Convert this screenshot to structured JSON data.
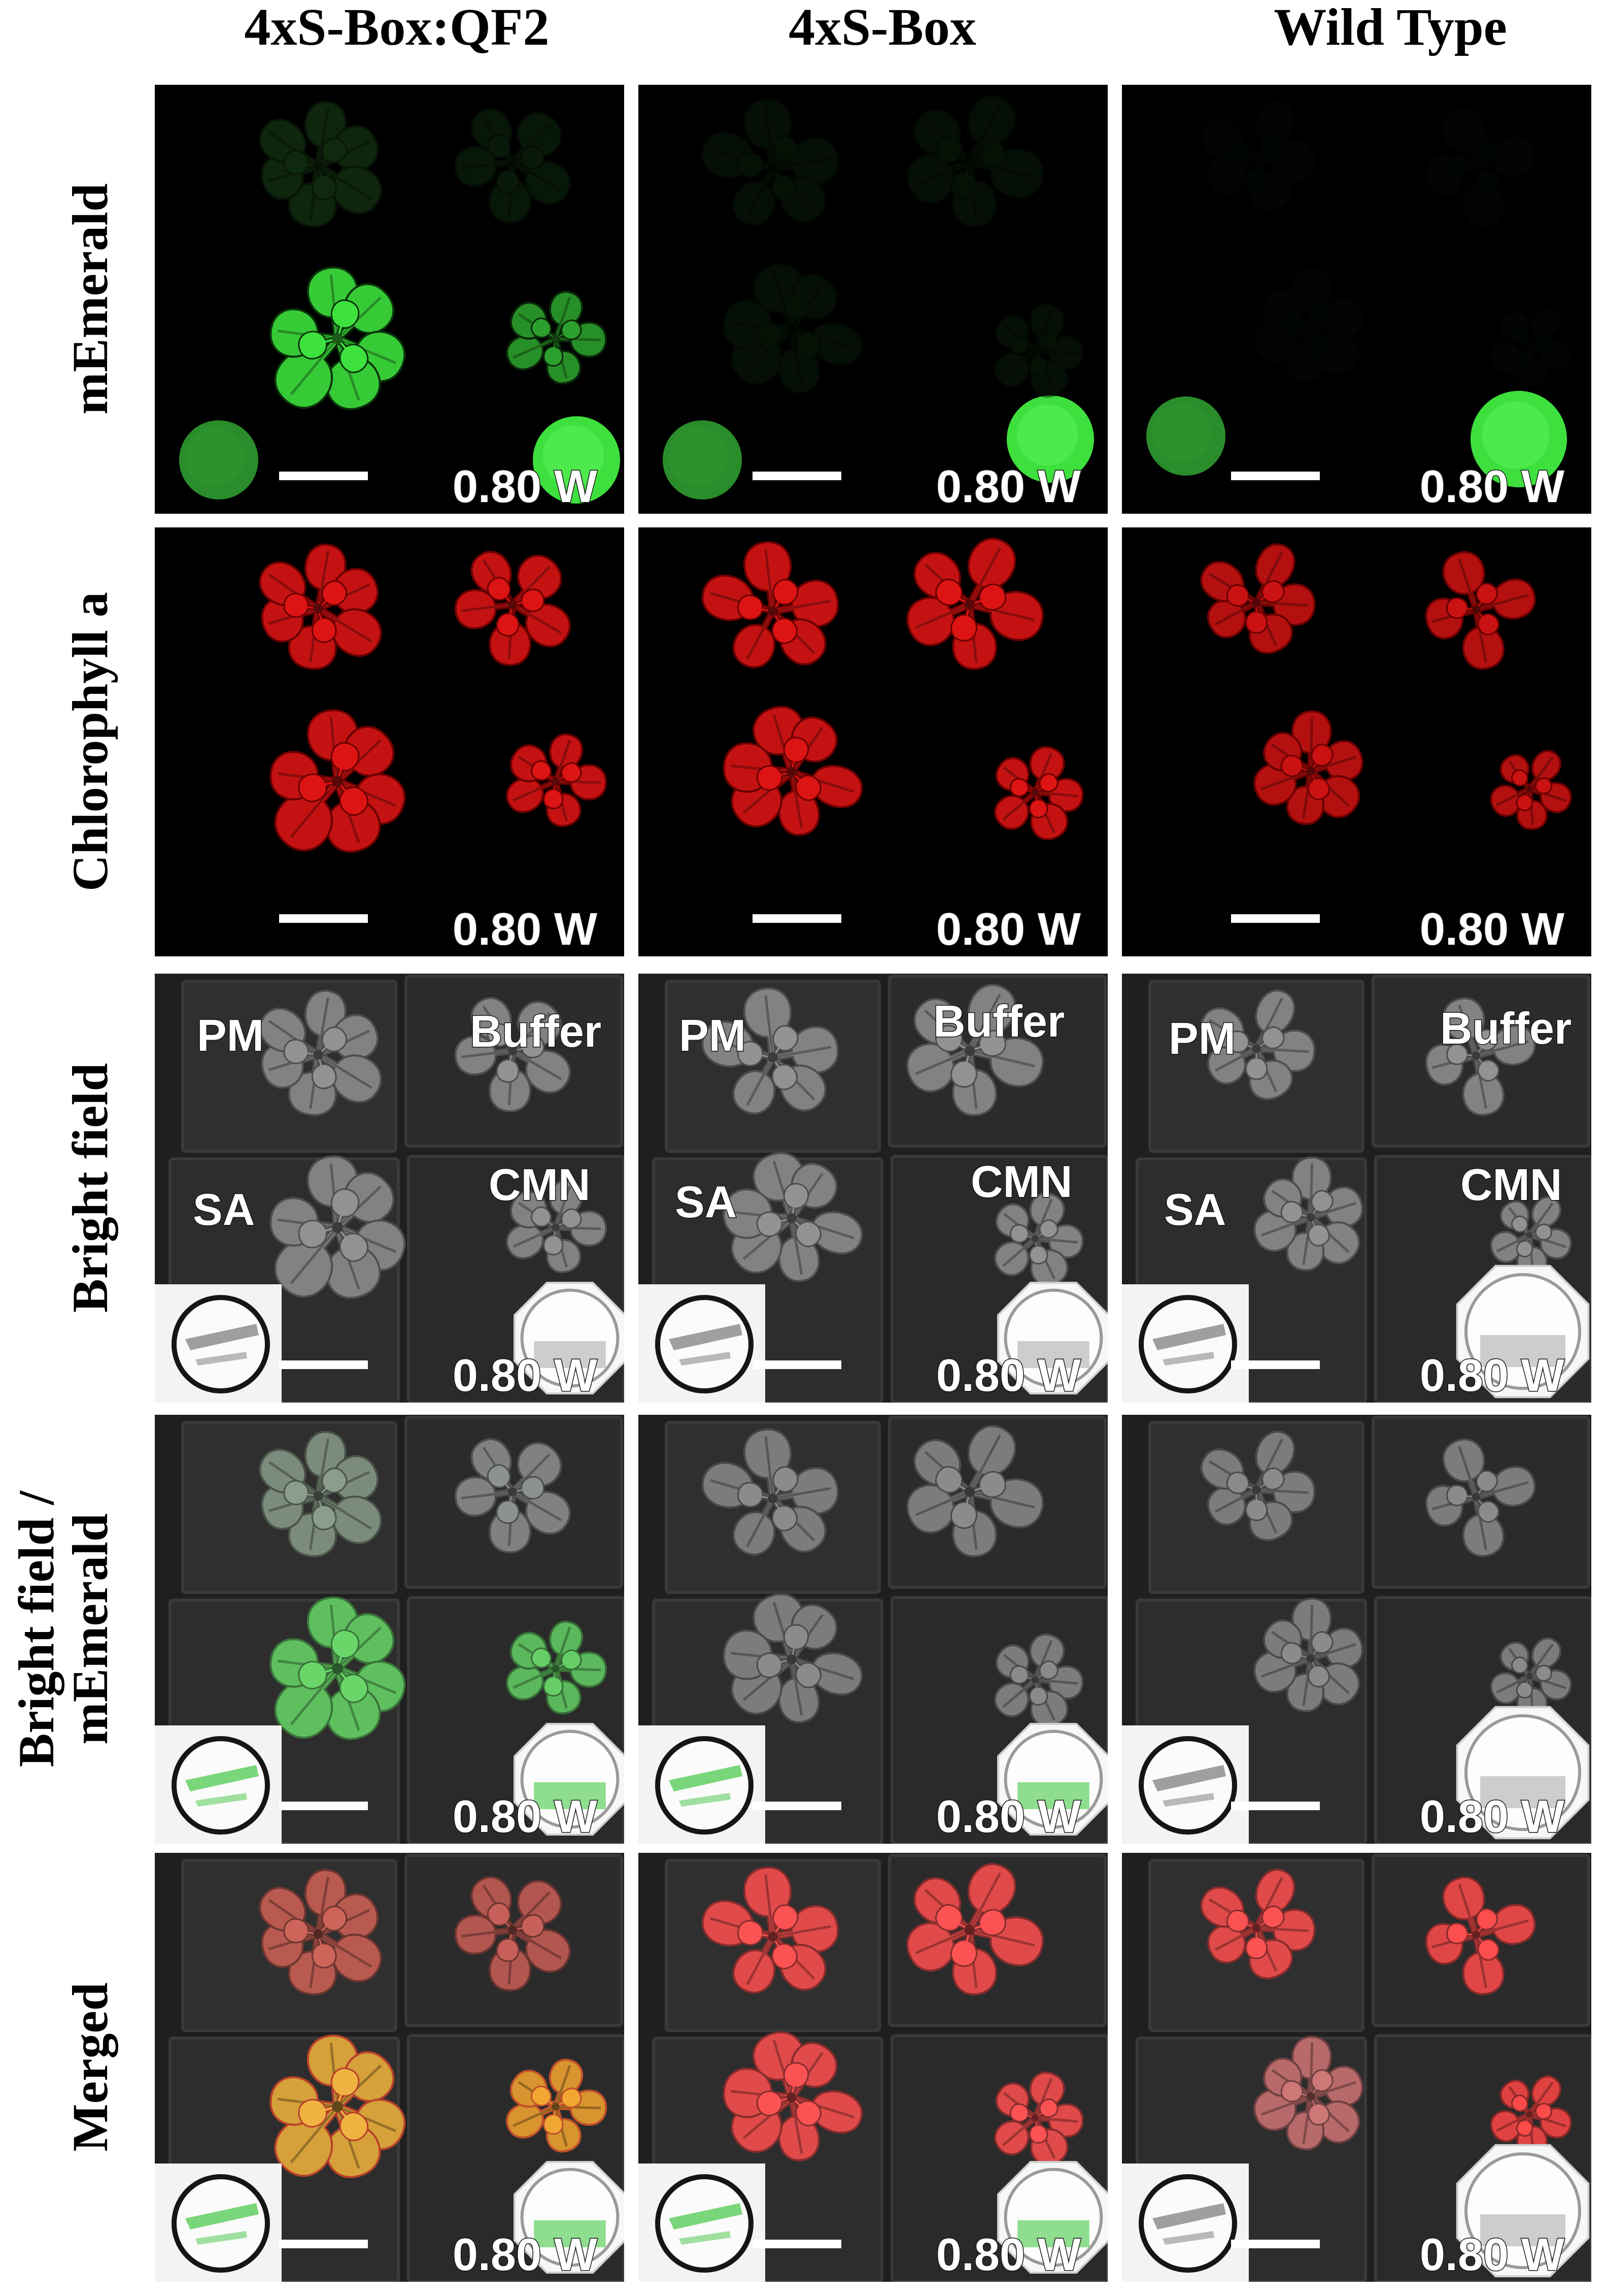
{
  "figure": {
    "columns": [
      "4xS-Box:QF2",
      "4xS-Box",
      "Wild Type"
    ],
    "rows": [
      {
        "lines": [
          "mEmerald"
        ]
      },
      {
        "lines": [
          "Chlorophyll a"
        ]
      },
      {
        "lines": [
          "Bright field"
        ]
      },
      {
        "lines": [
          "Bright field /",
          "mEmerald"
        ]
      },
      {
        "lines": [
          "Merged"
        ]
      }
    ],
    "power_labels": [
      [
        "0.80 W",
        "0.80 W",
        "0.80 W"
      ],
      [
        "0.80 W",
        "0.80 W",
        "0.80 W"
      ],
      [
        "0.80 W",
        "0.80 W",
        "0.80 W"
      ],
      [
        "0.80 W",
        "0.80 W",
        "0.80 W"
      ],
      [
        "0.80 W",
        "0.80 W",
        "0.80 W"
      ]
    ],
    "treatments": {
      "pm": "PM",
      "buffer": "Buffer",
      "sa": "SA",
      "cmn": "CMN"
    }
  },
  "colors": {
    "mEmerald": "#3ee03e",
    "chlorophyll": "#c41212",
    "bright_field_background": "#1f1f1f",
    "scale_bar": "#ffffff",
    "overlay_text": "#ffffff"
  }
}
